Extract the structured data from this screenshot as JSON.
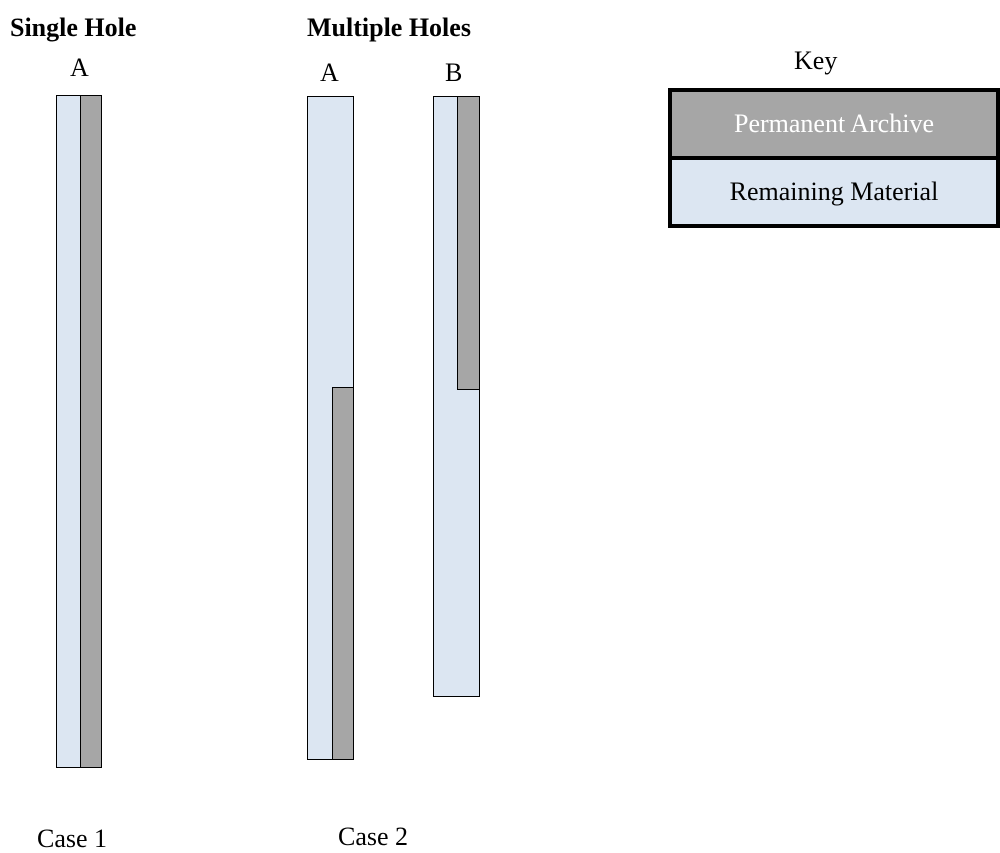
{
  "headings": {
    "single": "Single Hole",
    "multiple": "Multiple Holes"
  },
  "columns": {
    "case1_a": "A",
    "case2_a": "A",
    "case2_b": "B"
  },
  "cases": {
    "case1": "Case 1",
    "case2": "Case 2"
  },
  "key": {
    "title": "Key",
    "archive_label": "Permanent Archive",
    "remaining_label": "Remaining Material"
  },
  "colors": {
    "permanent_archive": "#a6a6a6",
    "remaining_material": "#dce6f2"
  }
}
